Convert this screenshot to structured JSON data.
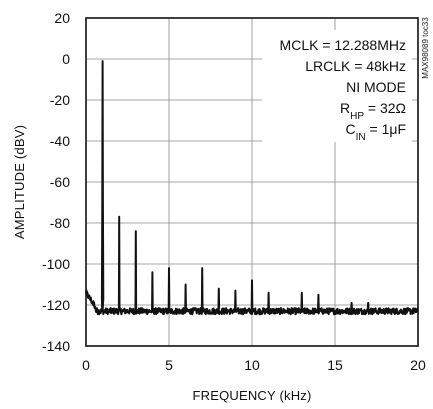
{
  "chart_data": {
    "type": "line",
    "title": "",
    "xlabel": "FREQUENCY (kHz)",
    "ylabel": "AMPLITUDE (dBV)",
    "xlim": [
      0,
      20
    ],
    "ylim": [
      -140,
      20
    ],
    "xticks": [
      "0",
      "5",
      "10",
      "15",
      "20"
    ],
    "yticks": [
      "20",
      "0",
      "-20",
      "-40",
      "-60",
      "-80",
      "-100",
      "-120",
      "-140"
    ],
    "grid": true,
    "noise_floor_dbv": -123,
    "peaks": [
      {
        "x": 1,
        "y": -1
      },
      {
        "x": 2,
        "y": -77
      },
      {
        "x": 3,
        "y": -84
      },
      {
        "x": 4,
        "y": -104
      },
      {
        "x": 5,
        "y": -102
      },
      {
        "x": 6,
        "y": -110
      },
      {
        "x": 7,
        "y": -102
      },
      {
        "x": 8,
        "y": -112
      },
      {
        "x": 9,
        "y": -113
      },
      {
        "x": 10,
        "y": -108
      },
      {
        "x": 11,
        "y": -114
      },
      {
        "x": 13,
        "y": -114
      },
      {
        "x": 14,
        "y": -115
      },
      {
        "x": 16,
        "y": -119
      },
      {
        "x": 17,
        "y": -119
      }
    ],
    "annotations": [
      {
        "text": "MCLK = 12.288MHz"
      },
      {
        "text": "LRCLK = 48kHz"
      },
      {
        "text": "NI MODE"
      },
      {
        "main": "R",
        "sub": "HP",
        "rest": " = 32Ω"
      },
      {
        "main": "C",
        "sub": "IN",
        "rest": " = 1μF"
      }
    ],
    "figure_id": "MAX98089 toc33"
  }
}
